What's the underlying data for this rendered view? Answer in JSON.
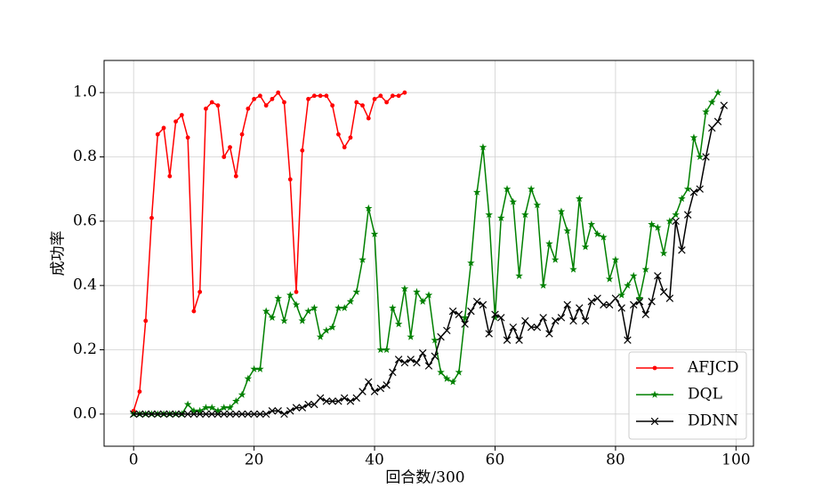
{
  "chart_data": {
    "type": "line",
    "x_label": "回合数/300",
    "y_label": "成功率",
    "xlim": [
      -4.9,
      102.9
    ],
    "ylim": [
      -0.1,
      1.1
    ],
    "xticks": [
      0,
      20,
      40,
      60,
      80,
      100
    ],
    "yticks": [
      {
        "value": 0,
        "label": "0.0"
      },
      0.2,
      0.4,
      0.6,
      0.8,
      {
        "value": 1,
        "label": "1.0"
      }
    ],
    "grid": true,
    "legend": "lower right",
    "series": [
      {
        "name": "AFJCD",
        "color": "#ff0000",
        "marker": "dot",
        "x": [
          0,
          1,
          2,
          3,
          4,
          5,
          6,
          7,
          8,
          9,
          10,
          11,
          12,
          13,
          14,
          15,
          16,
          17,
          18,
          19,
          20,
          21,
          22,
          23,
          24,
          25,
          26,
          27,
          28,
          29,
          30,
          31,
          32,
          33,
          34,
          35,
          36,
          37,
          38,
          39,
          40,
          41,
          42,
          43,
          44,
          45
        ],
        "values": [
          0.01,
          0.07,
          0.29,
          0.61,
          0.87,
          0.89,
          0.74,
          0.91,
          0.93,
          0.86,
          0.32,
          0.38,
          0.95,
          0.97,
          0.96,
          0.8,
          0.83,
          0.74,
          0.87,
          0.95,
          0.98,
          0.99,
          0.96,
          0.98,
          1.0,
          0.97,
          0.73,
          0.38,
          0.82,
          0.98,
          0.99,
          0.99,
          0.99,
          0.96,
          0.87,
          0.83,
          0.86,
          0.97,
          0.96,
          0.92,
          0.98,
          0.99,
          0.97,
          0.99,
          0.99,
          1.0
        ]
      },
      {
        "name": "DQL",
        "color": "#008000",
        "marker": "star",
        "x": [
          0,
          1,
          2,
          3,
          4,
          5,
          6,
          7,
          8,
          9,
          10,
          11,
          12,
          13,
          14,
          15,
          16,
          17,
          18,
          19,
          20,
          21,
          22,
          23,
          24,
          25,
          26,
          27,
          28,
          29,
          30,
          31,
          32,
          33,
          34,
          35,
          36,
          37,
          38,
          39,
          40,
          41,
          42,
          43,
          44,
          45,
          46,
          47,
          48,
          49,
          50,
          51,
          52,
          53,
          54,
          55,
          56,
          57,
          58,
          59,
          60,
          61,
          62,
          63,
          64,
          65,
          66,
          67,
          68,
          69,
          70,
          71,
          72,
          73,
          74,
          75,
          76,
          77,
          78,
          79,
          80,
          81,
          82,
          83,
          84,
          85,
          86,
          87,
          88,
          89,
          90,
          91,
          92,
          93,
          94,
          95,
          96,
          97
        ],
        "values": [
          0,
          0,
          0,
          0,
          0,
          0,
          0,
          0,
          0,
          0.03,
          0.01,
          0.01,
          0.02,
          0.02,
          0.01,
          0.02,
          0.02,
          0.04,
          0.06,
          0.11,
          0.14,
          0.14,
          0.32,
          0.3,
          0.36,
          0.29,
          0.37,
          0.34,
          0.29,
          0.32,
          0.33,
          0.24,
          0.26,
          0.27,
          0.33,
          0.33,
          0.35,
          0.38,
          0.48,
          0.64,
          0.56,
          0.2,
          0.2,
          0.33,
          0.28,
          0.39,
          0.24,
          0.38,
          0.35,
          0.37,
          0.23,
          0.13,
          0.11,
          0.1,
          0.13,
          0.3,
          0.47,
          0.69,
          0.83,
          0.62,
          0.3,
          0.61,
          0.7,
          0.66,
          0.43,
          0.62,
          0.7,
          0.65,
          0.4,
          0.53,
          0.48,
          0.63,
          0.57,
          0.45,
          0.67,
          0.52,
          0.59,
          0.56,
          0.55,
          0.42,
          0.48,
          0.37,
          0.4,
          0.43,
          0.36,
          0.45,
          0.59,
          0.58,
          0.5,
          0.6,
          0.62,
          0.67,
          0.7,
          0.86,
          0.8,
          0.94,
          0.97,
          1.0
        ]
      },
      {
        "name": "DDNN",
        "color": "#000000",
        "marker": "x",
        "x": [
          0,
          1,
          2,
          3,
          4,
          5,
          6,
          7,
          8,
          9,
          10,
          11,
          12,
          13,
          14,
          15,
          16,
          17,
          18,
          19,
          20,
          21,
          22,
          23,
          24,
          25,
          26,
          27,
          28,
          29,
          30,
          31,
          32,
          33,
          34,
          35,
          36,
          37,
          38,
          39,
          40,
          41,
          42,
          43,
          44,
          45,
          46,
          47,
          48,
          49,
          50,
          51,
          52,
          53,
          54,
          55,
          56,
          57,
          58,
          59,
          60,
          61,
          62,
          63,
          64,
          65,
          66,
          67,
          68,
          69,
          70,
          71,
          72,
          73,
          74,
          75,
          76,
          77,
          78,
          79,
          80,
          81,
          82,
          83,
          84,
          85,
          86,
          87,
          88,
          89,
          90,
          91,
          92,
          93,
          94,
          95,
          96,
          97,
          98
        ],
        "values": [
          0,
          0,
          0,
          0,
          0,
          0,
          0,
          0,
          0,
          0,
          0,
          0,
          0,
          0,
          0,
          0,
          0,
          0,
          0,
          0,
          0,
          0,
          0,
          0.01,
          0.01,
          0,
          0.01,
          0.02,
          0.02,
          0.03,
          0.03,
          0.05,
          0.04,
          0.04,
          0.04,
          0.05,
          0.04,
          0.05,
          0.07,
          0.1,
          0.07,
          0.08,
          0.09,
          0.13,
          0.17,
          0.16,
          0.17,
          0.16,
          0.19,
          0.15,
          0.18,
          0.24,
          0.26,
          0.32,
          0.31,
          0.28,
          0.32,
          0.35,
          0.34,
          0.25,
          0.31,
          0.3,
          0.23,
          0.27,
          0.23,
          0.29,
          0.27,
          0.27,
          0.3,
          0.25,
          0.29,
          0.3,
          0.34,
          0.29,
          0.33,
          0.29,
          0.35,
          0.36,
          0.34,
          0.34,
          0.36,
          0.33,
          0.23,
          0.34,
          0.35,
          0.31,
          0.35,
          0.43,
          0.38,
          0.36,
          0.6,
          0.51,
          0.62,
          0.69,
          0.7,
          0.8,
          0.89,
          0.91,
          0.96
        ]
      }
    ]
  }
}
